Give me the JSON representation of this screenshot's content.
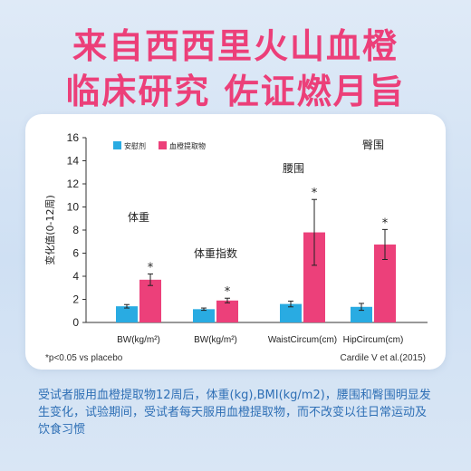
{
  "header": {
    "line1": "来自西西里火山血橙",
    "line2": "临床研究 佐证燃月旨"
  },
  "chart_data": {
    "type": "bar",
    "ylabel": "变化值(0-12周)",
    "ylim": [
      0,
      16
    ],
    "yticks": [
      0,
      2,
      4,
      6,
      8,
      10,
      12,
      14,
      16
    ],
    "legend": {
      "placement": "top-left"
    },
    "categories": [
      "BW(kg/m²)",
      "BW(kg/m²)",
      "WaistCircum(cm)",
      "HipCircum(cm)"
    ],
    "group_labels": [
      "体重",
      "体重指数",
      "腰围",
      "臀围"
    ],
    "series": [
      {
        "name": "安慰剂",
        "color": "#29abe2",
        "values": [
          1.4,
          1.15,
          1.6,
          1.35
        ],
        "errors": [
          0.15,
          0.1,
          0.25,
          0.3
        ],
        "markers": [
          "",
          "",
          "",
          ""
        ]
      },
      {
        "name": "血橙提取物",
        "color": "#ec407a",
        "values": [
          3.7,
          1.9,
          7.8,
          6.75
        ],
        "errors": [
          0.5,
          0.2,
          2.85,
          1.3
        ],
        "markers": [
          "*",
          "*",
          "*",
          "*"
        ]
      }
    ]
  },
  "footnote": "*p<0.05 vs placebo",
  "source": "Cardile V et al.(2015)",
  "description": "受试者服用血橙提取物12周后，体重(kg),BMI(kg/m2)，腰围和臀围明显发生变化，试验期间，受试者每天服用血橙提取物，而不改变以往日常运动及饮食习惯"
}
